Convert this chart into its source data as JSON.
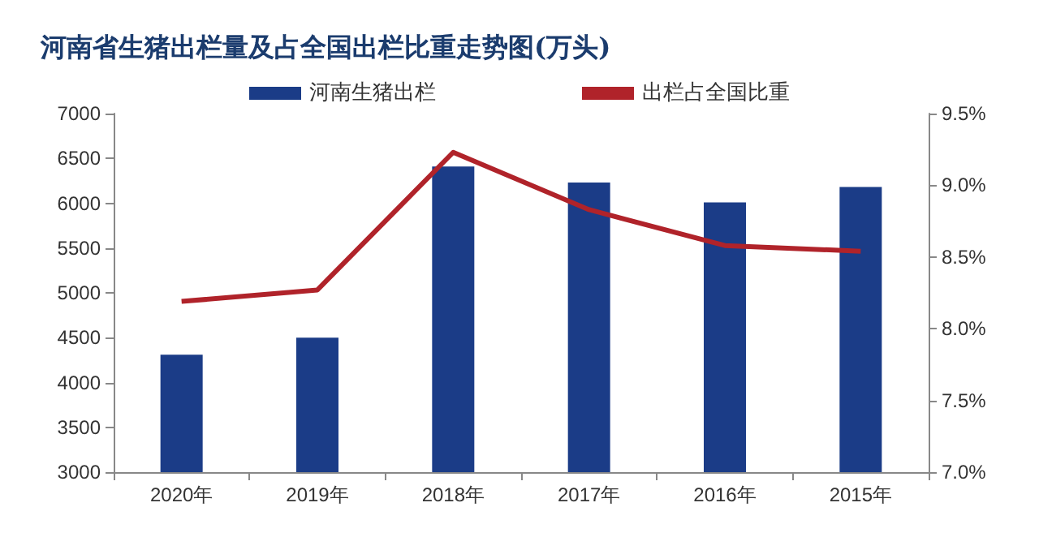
{
  "chart_data": {
    "type": "bar",
    "title": "河南省生猪出栏量及占全国出栏比重走势图(万头)",
    "categories": [
      "2020年",
      "2019年",
      "2018年",
      "2017年",
      "2016年",
      "2015年"
    ],
    "series": [
      {
        "name": "河南生猪出栏",
        "color": "#1b3c87",
        "values": [
          4310,
          4500,
          6410,
          6230,
          6010,
          6180
        ]
      },
      {
        "name": "出栏占全国比重",
        "type": "line",
        "axis": "y2",
        "color": "#b0232a",
        "values": [
          8.19,
          8.27,
          9.23,
          8.83,
          8.58,
          8.54
        ]
      }
    ],
    "ylim": [
      3000,
      7000
    ],
    "yticks": [
      3000,
      3500,
      4000,
      4500,
      5000,
      5500,
      6000,
      6500,
      7000
    ],
    "y2lim": [
      7.0,
      9.5
    ],
    "y2ticks": [
      {
        "value": 7.0,
        "label": "7.0%"
      },
      {
        "value": 7.5,
        "label": "7.5%"
      },
      {
        "value": 8.0,
        "label": "8.0%"
      },
      {
        "value": 8.5,
        "label": "8.5%"
      },
      {
        "value": 9.0,
        "label": "9.0%"
      },
      {
        "value": 9.5,
        "label": "9.5%"
      }
    ],
    "grid": false,
    "legend": "top",
    "marker": "none",
    "line_style": "solid"
  }
}
